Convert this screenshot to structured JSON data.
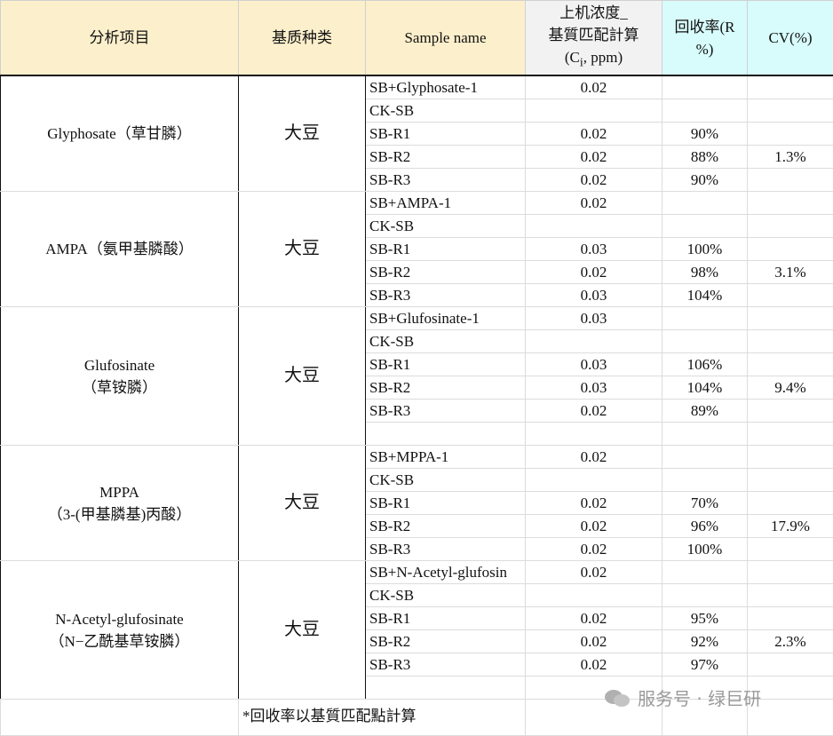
{
  "header": [
    {
      "lines": [
        "分析项目"
      ]
    },
    {
      "lines": [
        "基质种类"
      ]
    },
    {
      "lines": [
        "Sample name"
      ]
    },
    {
      "lines": [
        "上机浓度_",
        "基質匹配計算"
      ],
      "unit": [
        "(C",
        "i",
        ", ppm)"
      ]
    },
    {
      "lines": [
        "回收率(R",
        "%)"
      ]
    },
    {
      "lines": [
        "CV(%)"
      ]
    }
  ],
  "groups": [
    {
      "analyte": [
        "Glyphosate（草甘膦）"
      ],
      "matrix": "大豆",
      "cv": "1.3%",
      "rows": [
        {
          "sample": "SB+Glyphosate-1",
          "conc": "0.02"
        },
        {
          "sample": "CK-SB"
        },
        {
          "sample": "SB-R1",
          "conc": "0.02",
          "recovery": "90%"
        },
        {
          "sample": "SB-R2",
          "conc": "0.02",
          "recovery": "88%"
        },
        {
          "sample": "SB-R3",
          "conc": "0.02",
          "recovery": "90%"
        }
      ]
    },
    {
      "analyte": [
        "AMPA（氨甲基膦酸）"
      ],
      "matrix": "大豆",
      "cv": "3.1%",
      "rows": [
        {
          "sample": "SB+AMPA-1",
          "conc": "0.02"
        },
        {
          "sample": "CK-SB"
        },
        {
          "sample": "SB-R1",
          "conc": "0.03",
          "recovery": "100%"
        },
        {
          "sample": "SB-R2",
          "conc": "0.02",
          "recovery": "98%"
        },
        {
          "sample": "SB-R3",
          "conc": "0.03",
          "recovery": "104%"
        }
      ]
    },
    {
      "analyte": [
        "Glufosinate",
        "（草铵膦）"
      ],
      "matrix": "大豆",
      "cv": "9.4%",
      "rows": [
        {
          "sample": "SB+Glufosinate-1",
          "conc": "0.03"
        },
        {
          "sample": "CK-SB"
        },
        {
          "sample": "SB-R1",
          "conc": "0.03",
          "recovery": "106%"
        },
        {
          "sample": "SB-R2",
          "conc": "0.03",
          "recovery": "104%"
        },
        {
          "sample": "SB-R3",
          "conc": "0.02",
          "recovery": "89%"
        },
        {}
      ]
    },
    {
      "analyte": [
        "MPPA",
        "（3-(甲基膦基)丙酸）"
      ],
      "matrix": "大豆",
      "cv": "17.9%",
      "rows": [
        {
          "sample": "SB+MPPA-1",
          "conc": "0.02"
        },
        {
          "sample": "CK-SB"
        },
        {
          "sample": "SB-R1",
          "conc": "0.02",
          "recovery": "70%"
        },
        {
          "sample": "SB-R2",
          "conc": "0.02",
          "recovery": "96%"
        },
        {
          "sample": "SB-R3",
          "conc": "0.02",
          "recovery": "100%"
        }
      ]
    },
    {
      "analyte": [
        "N-Acetyl-glufosinate",
        "（N−乙酰基草铵膦）"
      ],
      "matrix": "大豆",
      "cv": "2.3%",
      "rows": [
        {
          "sample": "SB+N-Acetyl-glufosin",
          "conc": "0.02"
        },
        {
          "sample": "CK-SB"
        },
        {
          "sample": "SB-R1",
          "conc": "0.02",
          "recovery": "95%"
        },
        {
          "sample": "SB-R2",
          "conc": "0.02",
          "recovery": "92%"
        },
        {
          "sample": "SB-R3",
          "conc": "0.02",
          "recovery": "97%"
        },
        {}
      ]
    }
  ],
  "footnote": "*回收率以基質匹配點計算",
  "watermark": "服务号 · 绿巨研"
}
